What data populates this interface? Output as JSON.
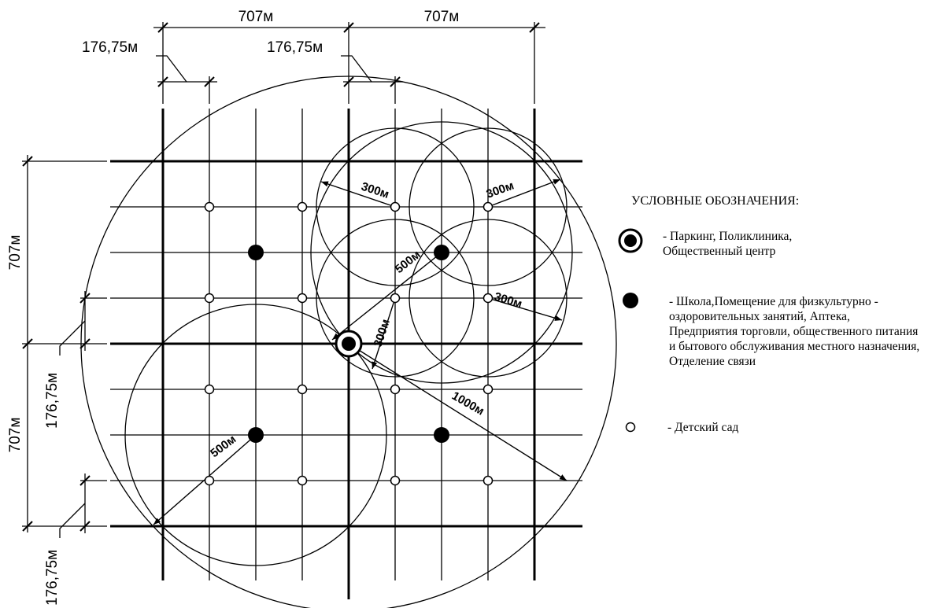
{
  "dimensions": {
    "top_left_707": "707м",
    "top_right_707": "707м",
    "top_left_176": "176,75м",
    "top_mid_176": "176,75м",
    "left_upper_707": "707м",
    "left_lower_707": "707м",
    "left_upper_176": "176,75м",
    "left_lower_176": "176,75м"
  },
  "radii": {
    "r300_a": "300м",
    "r300_b": "300м",
    "r300_c": "300м",
    "r300_d": "300м",
    "r500_a": "500м",
    "r500_b": "500м",
    "r1000": "1000м"
  },
  "legend": {
    "title": "УСЛОВНЫЕ ОБОЗНАЧЕНИЯ:",
    "items": [
      {
        "symbol": "bullseye-icon",
        "text": "- Паркинг, Поликлиника, Общественный центр"
      },
      {
        "symbol": "filled-circle-icon",
        "text": "- Школа,Помещение для физкультурно - оздоровительных занятий, Аптека, Предприятия торговли, общественного питания и бытового обслуживания местного назначения, Отделение связи"
      },
      {
        "symbol": "open-circle-icon",
        "text": "- Детский сад"
      }
    ]
  }
}
